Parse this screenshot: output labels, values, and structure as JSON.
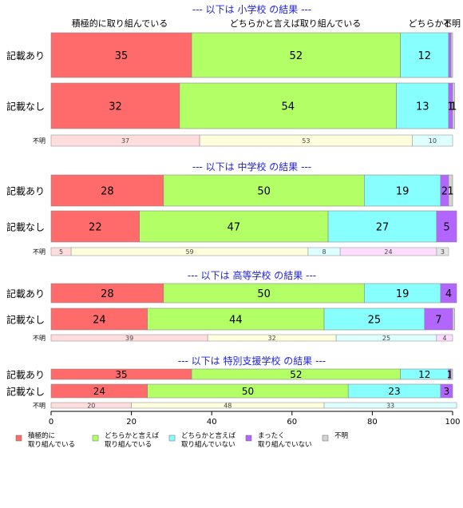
{
  "chart_data": {
    "type": "bar",
    "orientation": "horizontal",
    "stacked": true,
    "xlim": [
      0,
      100
    ],
    "x_ticks": [
      "0",
      "20",
      "40",
      "60",
      "80",
      "100"
    ],
    "top_labels": [
      "積極的に取り組んでいる",
      "どちらかと言えば取り組んでいる",
      "どちらかと",
      "不明"
    ],
    "legend": [
      {
        "label": "積極的に\n取り組んでいる",
        "color": "#FF6B6B"
      },
      {
        "label": "どちらかと言えば\n取り組んでいる",
        "color": "#B3FF66"
      },
      {
        "label": "どちらかと言えば\n取り組んでいない",
        "color": "#88FFFF"
      },
      {
        "label": "まったく\n取り組んでいない",
        "color": "#B266FF"
      },
      {
        "label": "不明",
        "color": "#D3D3D3"
      }
    ],
    "unknown_label": "不明",
    "panels": [
      {
        "title": "--- 以下は 小学校 の結果 ---",
        "rows": [
          {
            "label": "記載あり",
            "values": [
              35,
              52,
              12,
              0.6,
              0.4
            ],
            "labels": [
              "35",
              "52",
              "12",
              "",
              ""
            ]
          },
          {
            "label": "記載なし",
            "values": [
              32,
              54,
              13,
              1,
              0.5
            ],
            "labels": [
              "32",
              "54",
              "13",
              "1",
              "1"
            ]
          }
        ],
        "unknown": {
          "values": [
            37,
            53,
            10,
            0,
            0
          ],
          "labels": [
            "37",
            "53",
            "10",
            "",
            ""
          ]
        }
      },
      {
        "title": "--- 以下は 中学校 の結果 ---",
        "rows": [
          {
            "label": "記載あり",
            "values": [
              28,
              50,
              19,
              2,
              1
            ],
            "labels": [
              "28",
              "50",
              "19",
              "2",
              "1"
            ]
          },
          {
            "label": "記載なし",
            "values": [
              22,
              47,
              27,
              5,
              0
            ],
            "labels": [
              "22",
              "47",
              "27",
              "5",
              ""
            ]
          }
        ],
        "unknown": {
          "values": [
            5,
            59,
            8,
            24,
            3
          ],
          "labels": [
            "5",
            "59",
            "8",
            "24",
            "3"
          ]
        }
      },
      {
        "title": "--- 以下は 高等学校 の結果 ---",
        "rows": [
          {
            "label": "記載あり",
            "values": [
              28,
              50,
              19,
              4,
              0
            ],
            "labels": [
              "28",
              "50",
              "19",
              "4",
              ""
            ]
          },
          {
            "label": "記載なし",
            "values": [
              24,
              44,
              25,
              7,
              0.5
            ],
            "labels": [
              "24",
              "44",
              "25",
              "7",
              ""
            ]
          }
        ],
        "unknown": {
          "values": [
            39,
            32,
            25,
            4,
            0
          ],
          "labels": [
            "39",
            "32",
            "25",
            "4",
            ""
          ]
        }
      },
      {
        "title": "--- 以下は 特別支援学校 の結果 ---",
        "rows": [
          {
            "label": "記載あり",
            "values": [
              35,
              52,
              12,
              0.6,
              0.4
            ],
            "labels": [
              "35",
              "52",
              "12",
              "1",
              ""
            ]
          },
          {
            "label": "記載なし",
            "values": [
              24,
              50,
              23,
              3,
              0
            ],
            "labels": [
              "24",
              "50",
              "23",
              "3",
              ""
            ]
          }
        ],
        "unknown": {
          "values": [
            20,
            48,
            33,
            0,
            0
          ],
          "labels": [
            "20",
            "48",
            "33",
            "",
            ""
          ]
        }
      }
    ]
  }
}
